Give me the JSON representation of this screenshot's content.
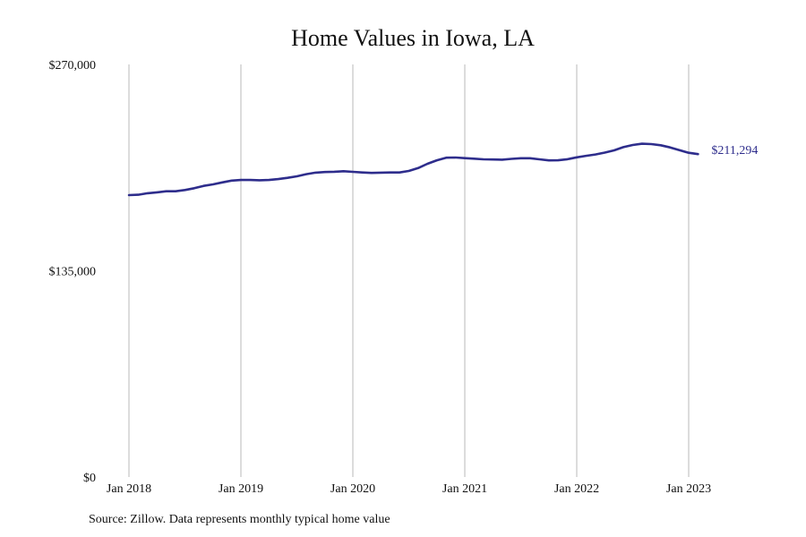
{
  "chart_data": {
    "type": "line",
    "title": "Home Values in Iowa, LA",
    "xlabel": "",
    "ylabel": "",
    "ylim": [
      0,
      270000
    ],
    "y_ticks": [
      0,
      135000,
      270000
    ],
    "y_tick_labels": [
      "$0",
      "$135,000",
      "$270,000"
    ],
    "x_ticks": [
      "2018-01",
      "2019-01",
      "2020-01",
      "2021-01",
      "2022-01",
      "2023-01"
    ],
    "x_tick_labels": [
      "Jan 2018",
      "Jan 2019",
      "Jan 2020",
      "Jan 2021",
      "Jan 2022",
      "Jan 2023"
    ],
    "grid": "vertical",
    "line_color": "#2e2d8c",
    "end_label": "$211,294",
    "series": [
      {
        "x": [
          "2018-01",
          "2018-02",
          "2018-03",
          "2018-04",
          "2018-05",
          "2018-06",
          "2018-07",
          "2018-08",
          "2018-09",
          "2018-10",
          "2018-11",
          "2018-12",
          "2019-01",
          "2019-02",
          "2019-03",
          "2019-04",
          "2019-05",
          "2019-06",
          "2019-07",
          "2019-08",
          "2019-09",
          "2019-10",
          "2019-11",
          "2019-12",
          "2020-01",
          "2020-02",
          "2020-03",
          "2020-04",
          "2020-05",
          "2020-06",
          "2020-07",
          "2020-08",
          "2020-09",
          "2020-10",
          "2020-11",
          "2020-12",
          "2021-01",
          "2021-02",
          "2021-03",
          "2021-04",
          "2021-05",
          "2021-06",
          "2021-07",
          "2021-08",
          "2021-09",
          "2021-10",
          "2021-11",
          "2021-12",
          "2022-01",
          "2022-02",
          "2022-03",
          "2022-04",
          "2022-05",
          "2022-06",
          "2022-07",
          "2022-08",
          "2022-09",
          "2022-10",
          "2022-11",
          "2022-12",
          "2023-01",
          "2023-02"
        ],
        "values": [
          184500,
          184700,
          185700,
          186300,
          187000,
          187000,
          187800,
          189000,
          190500,
          191500,
          192800,
          194000,
          194400,
          194400,
          194200,
          194400,
          195000,
          195800,
          196800,
          198200,
          199200,
          199600,
          199800,
          200100,
          199700,
          199300,
          199000,
          199200,
          199300,
          199300,
          200300,
          202200,
          205000,
          207300,
          209000,
          209100,
          208700,
          208300,
          207900,
          207800,
          207700,
          208200,
          208600,
          208600,
          207900,
          207200,
          207300,
          208000,
          209200,
          210200,
          211100,
          212300,
          213800,
          215900,
          217300,
          218100,
          217900,
          217100,
          215700,
          213900,
          212200,
          211294
        ]
      }
    ]
  },
  "source_note": "Source: Zillow. Data represents monthly typical home value"
}
